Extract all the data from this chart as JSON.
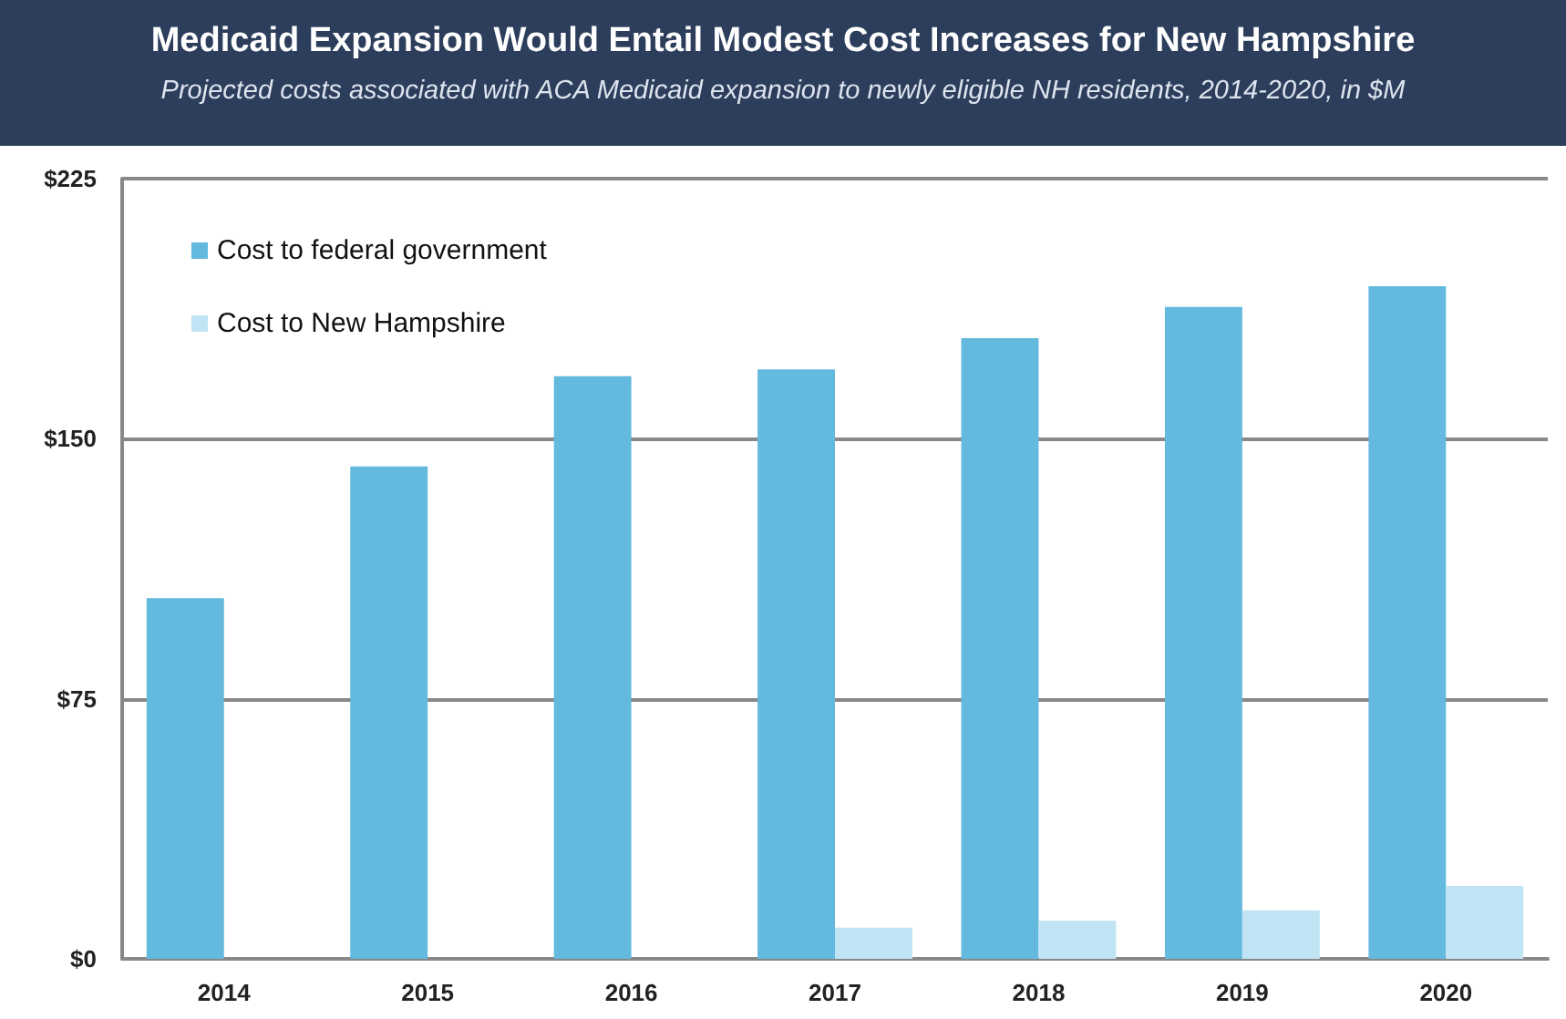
{
  "chart_data": {
    "type": "bar",
    "title": "Medicaid Expansion Would Entail Modest Cost Increases for New Hampshire",
    "subtitle": "Projected costs associated with ACA Medicaid expansion to newly eligible NH residents, 2014-2020, in $M",
    "categories": [
      "2014",
      "2015",
      "2016",
      "2017",
      "2018",
      "2019",
      "2020"
    ],
    "series": [
      {
        "name": "Cost to federal government",
        "color": "#63b9de",
        "values": [
          104,
          142,
          168,
          170,
          179,
          188,
          194
        ]
      },
      {
        "name": "Cost to New Hampshire",
        "color": "#c0e4f3",
        "values": [
          0,
          0,
          0,
          9,
          11,
          14,
          21
        ]
      }
    ],
    "ylim": [
      0,
      225
    ],
    "yticks": [
      {
        "value": 0,
        "label": "$0"
      },
      {
        "value": 75,
        "label": "$75"
      },
      {
        "value": 150,
        "label": "$150"
      },
      {
        "value": 225,
        "label": "$225"
      }
    ],
    "grid": "y",
    "legend": "top left"
  }
}
